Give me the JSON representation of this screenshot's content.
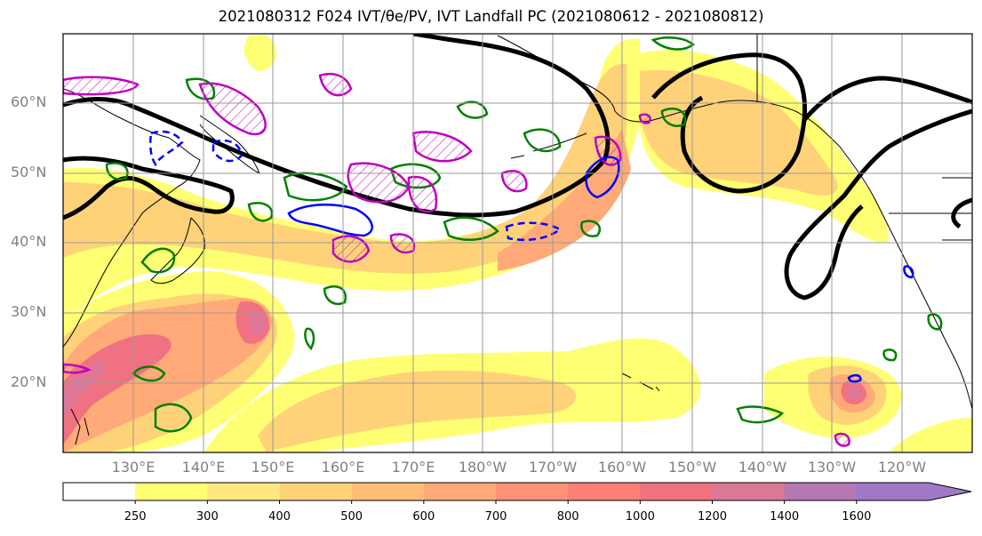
{
  "title": "2021080312 F024 IVT/θe/PV, IVT Landfall PC (2021080612 - 2021080812)",
  "lat_ticks": [
    "60°N",
    "50°N",
    "40°N",
    "30°N",
    "20°N"
  ],
  "lon_ticks": [
    "130°E",
    "140°E",
    "150°E",
    "160°E",
    "170°E",
    "180°W",
    "170°W",
    "160°W",
    "150°W",
    "140°W",
    "130°W",
    "120°W"
  ],
  "colorbar": {
    "labels": [
      "250",
      "300",
      "400",
      "500",
      "600",
      "700",
      "800",
      "1000",
      "1200",
      "1400",
      "1600"
    ],
    "colors": [
      "#ffffff",
      "#ffff73",
      "#ffe680",
      "#ffd27a",
      "#ffbe78",
      "#ffaa78",
      "#ff9178",
      "#ff8078",
      "#f07282",
      "#dc7896",
      "#b478b4",
      "#a078c8"
    ]
  },
  "contour_colors": {
    "pc": "#000000",
    "theta_e": "#008000",
    "pv_positive": "#bf00bf",
    "pv_negative": "#0000ff"
  }
}
